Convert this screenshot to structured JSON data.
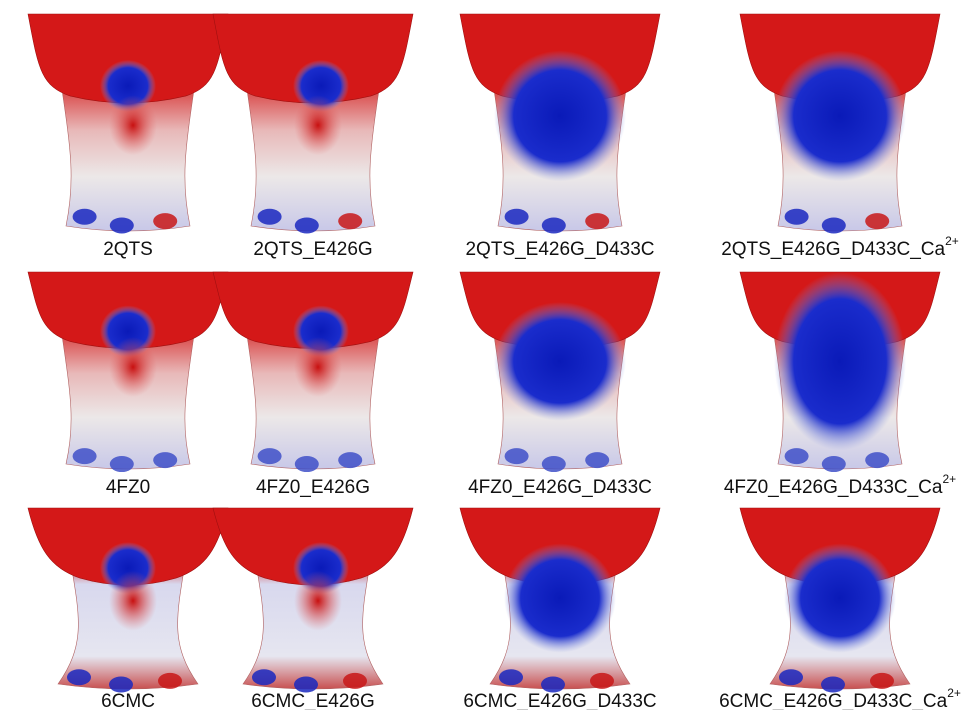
{
  "panels": [
    {
      "label": "2QTS"
    },
    {
      "label": "2QTS_E426G"
    },
    {
      "label": "2QTS_E426G_D433C"
    },
    {
      "label": "2QTS_E426G_D433C_Ca",
      "superscript": "2+"
    },
    {
      "label": "4FZ0"
    },
    {
      "label": "4FZ0_E426G"
    },
    {
      "label": "4FZ0_E426G_D433C"
    },
    {
      "label": "4FZ0_E426G_D433C_Ca",
      "superscript": "2+"
    },
    {
      "label": "6CMC"
    },
    {
      "label": "6CMC_E426G"
    },
    {
      "label": "6CMC_E426G_D433C"
    },
    {
      "label": "6CMC_E426G_D433C_Ca",
      "superscript": "2+"
    }
  ]
}
